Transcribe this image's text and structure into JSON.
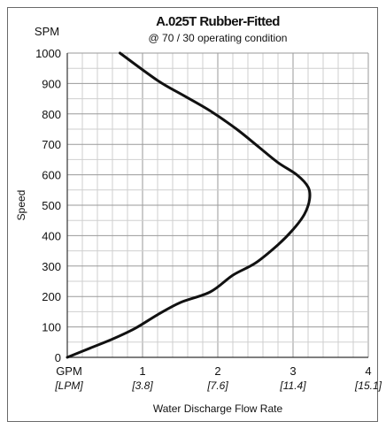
{
  "chart_data": {
    "type": "line",
    "title": "A.025T Rubber-Fitted",
    "subtitle": "@ 70 / 30 operating condition",
    "xlabel": "Water Discharge Flow Rate",
    "ylabel": "Speed",
    "y_unit_label": "SPM",
    "x_unit_label": "GPM",
    "x_unit_label_secondary": "[LPM]",
    "xlim": [
      0,
      4
    ],
    "ylim": [
      0,
      1000
    ],
    "x_ticks": [
      {
        "value": 1,
        "label": "1",
        "label_secondary": "[3.8]"
      },
      {
        "value": 2,
        "label": "2",
        "label_secondary": "[7.6]"
      },
      {
        "value": 3,
        "label": "3",
        "label_secondary": "[11.4]"
      },
      {
        "value": 4,
        "label": "4",
        "label_secondary": "[15.1]"
      }
    ],
    "y_ticks": [
      {
        "value": 0,
        "label": "0"
      },
      {
        "value": 100,
        "label": "100"
      },
      {
        "value": 200,
        "label": "200"
      },
      {
        "value": 300,
        "label": "300"
      },
      {
        "value": 400,
        "label": "400"
      },
      {
        "value": 500,
        "label": "500"
      },
      {
        "value": 600,
        "label": "600"
      },
      {
        "value": 700,
        "label": "700"
      },
      {
        "value": 800,
        "label": "800"
      },
      {
        "value": 900,
        "label": "900"
      },
      {
        "value": 1000,
        "label": "1000"
      }
    ],
    "grid": true,
    "line_color": "#111111",
    "series": [
      {
        "x": [
          0.0,
          0.3,
          0.6,
          0.9,
          1.2,
          1.5,
          1.9,
          2.2,
          2.5,
          2.8,
          3.0,
          3.15,
          3.22,
          3.2,
          3.05,
          2.8,
          2.55,
          2.25,
          1.9,
          1.55,
          1.2,
          0.7
        ],
        "y": [
          0,
          30,
          60,
          95,
          140,
          180,
          215,
          270,
          310,
          370,
          420,
          470,
          520,
          560,
          600,
          640,
          690,
          750,
          810,
          860,
          910,
          1000
        ]
      }
    ]
  }
}
